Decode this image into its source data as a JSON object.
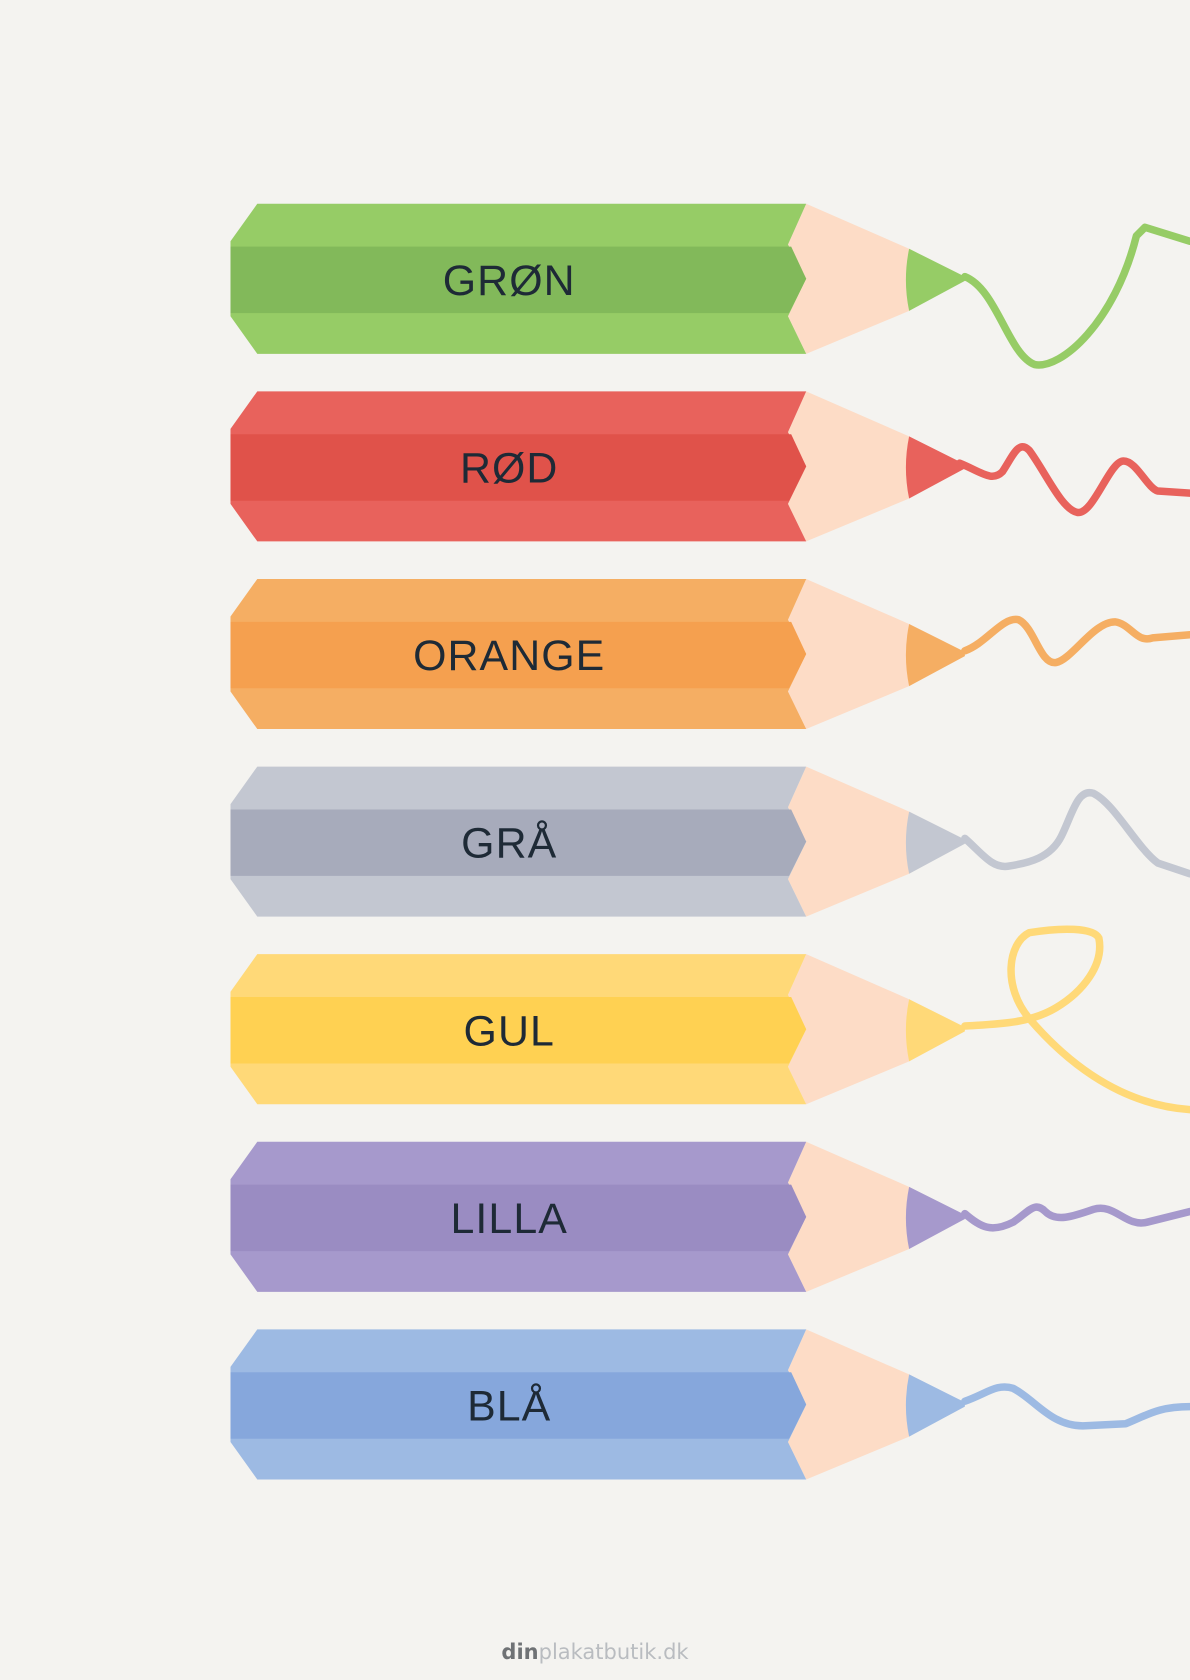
{
  "pencils": [
    {
      "label": "GRØN",
      "light": "#96cc66",
      "dark": "#82b95a"
    },
    {
      "label": "RØD",
      "light": "#e8625c",
      "dark": "#e0524a"
    },
    {
      "label": "ORANGE",
      "light": "#f5ae63",
      "dark": "#f5a04f"
    },
    {
      "label": "GRÅ",
      "light": "#c3c7d1",
      "dark": "#a7abbb"
    },
    {
      "label": "GUL",
      "light": "#ffd978",
      "dark": "#ffd152"
    },
    {
      "label": "LILLA",
      "light": "#a699cc",
      "dark": "#9a8cc2"
    },
    {
      "label": "BLÅ",
      "light": "#9dbae3",
      "dark": "#86a7dc"
    }
  ],
  "wood_color": "#fddcc6",
  "footer": {
    "brand_bold": "din",
    "brand_light": "plakatbutik.dk"
  }
}
